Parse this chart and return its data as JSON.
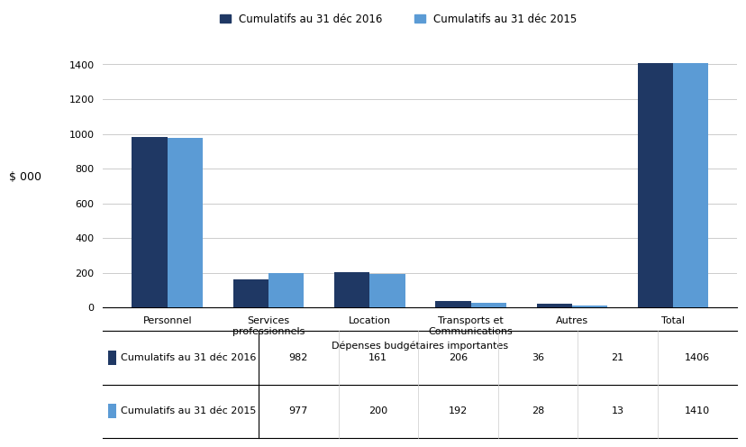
{
  "categories": [
    "Personnel",
    "Services\nprofessionnels",
    "Location",
    "Transports et\nCommunications",
    "Autres",
    "Total"
  ],
  "categories_table": [
    "",
    "Personnel",
    "Services\nprofessionnels",
    "Location",
    "Transports et\nCommunications",
    "Autres",
    "Total"
  ],
  "series_2016": [
    982,
    161,
    206,
    36,
    21,
    1406
  ],
  "series_2015": [
    977,
    200,
    192,
    28,
    13,
    1410
  ],
  "color_2016": "#1F3864",
  "color_2015": "#5B9BD5",
  "legend_2016": "Cumulatifs au 31 déc 2016",
  "legend_2015": "Cumulatifs au 31 déc 2015",
  "ylabel": "$ 000",
  "xlabel": "Dépenses budgétaires importantes",
  "ylim": [
    0,
    1500
  ],
  "yticks": [
    0,
    200,
    400,
    600,
    800,
    1000,
    1200,
    1400
  ],
  "bar_width": 0.35,
  "table_row1_label": "Cumulatifs au 31 déc 2016",
  "table_row2_label": "Cumulatifs au 31 déc 2015",
  "background_color": "#FFFFFF"
}
